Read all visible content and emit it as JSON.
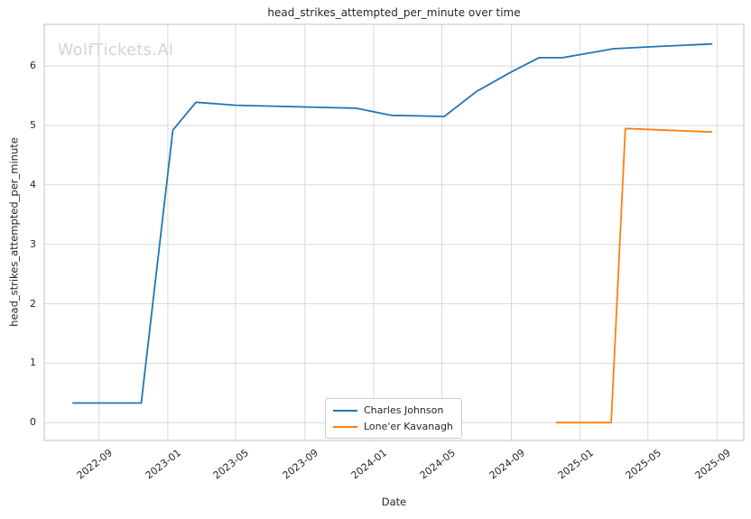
{
  "chart_data": {
    "type": "line",
    "title": "head_strikes_attempted_per_minute over time",
    "xlabel": "Date",
    "ylabel": "head_strikes_attempted_per_minute",
    "watermark": "WolfTickets.AI",
    "grid": true,
    "x_domain": [
      "2022-05-27",
      "2025-10-18"
    ],
    "ylim": [
      -0.3,
      6.7
    ],
    "y_ticks": [
      0,
      1,
      2,
      3,
      4,
      5,
      6
    ],
    "x_ticks": [
      {
        "date": "2022-09-01",
        "label": "2022-09"
      },
      {
        "date": "2023-01-01",
        "label": "2023-01"
      },
      {
        "date": "2023-05-01",
        "label": "2023-05"
      },
      {
        "date": "2023-09-01",
        "label": "2023-09"
      },
      {
        "date": "2024-01-01",
        "label": "2024-01"
      },
      {
        "date": "2024-05-01",
        "label": "2024-05"
      },
      {
        "date": "2024-09-01",
        "label": "2024-09"
      },
      {
        "date": "2025-01-01",
        "label": "2025-01"
      },
      {
        "date": "2025-05-01",
        "label": "2025-05"
      },
      {
        "date": "2025-09-01",
        "label": "2025-09"
      }
    ],
    "legend": {
      "position": "lower center inside",
      "entries": [
        "Charles Johnson",
        "Lone'er Kavanagh"
      ]
    },
    "series": [
      {
        "name": "Charles Johnson",
        "color": "#1f77b4",
        "points": [
          [
            "2022-07-17",
            0.33
          ],
          [
            "2022-11-15",
            0.33
          ],
          [
            "2023-01-10",
            4.92
          ],
          [
            "2023-02-20",
            5.39
          ],
          [
            "2023-05-01",
            5.34
          ],
          [
            "2023-09-01",
            5.31
          ],
          [
            "2023-12-01",
            5.29
          ],
          [
            "2024-02-01",
            5.17
          ],
          [
            "2024-03-20",
            5.16
          ],
          [
            "2024-05-05",
            5.15
          ],
          [
            "2024-07-01",
            5.57
          ],
          [
            "2024-09-01",
            5.9
          ],
          [
            "2024-10-20",
            6.14
          ],
          [
            "2024-12-01",
            6.14
          ],
          [
            "2025-03-01",
            6.29
          ],
          [
            "2025-05-01",
            6.32
          ],
          [
            "2025-08-22",
            6.37
          ]
        ]
      },
      {
        "name": "Lone'er Kavanagh",
        "color": "#ff7f0e",
        "points": [
          [
            "2024-11-20",
            0.0
          ],
          [
            "2025-02-25",
            0.0
          ],
          [
            "2025-03-22",
            4.95
          ],
          [
            "2025-06-01",
            4.92
          ],
          [
            "2025-08-22",
            4.89
          ]
        ]
      }
    ]
  },
  "style": {
    "background": "#ffffff",
    "grid_color": "#d9d9d9",
    "spine_color": "#cbcbcb",
    "text_color": "#262626",
    "watermark_color": "#d4d4d4"
  }
}
